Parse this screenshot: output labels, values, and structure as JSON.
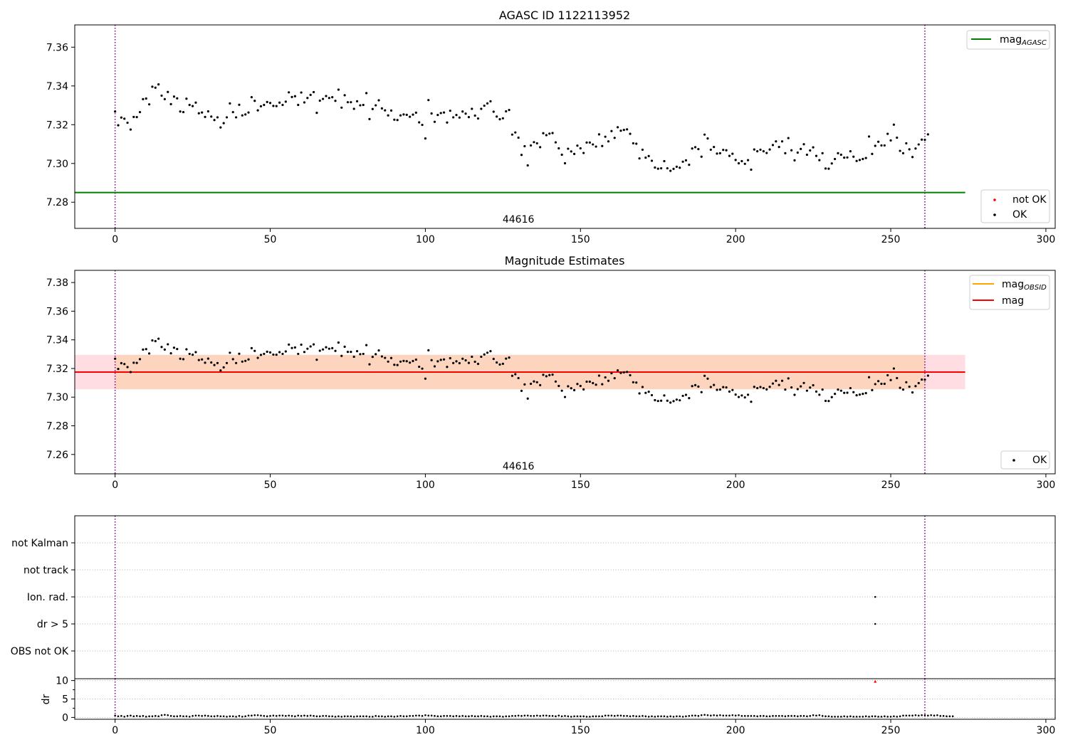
{
  "chart_data": [
    {
      "type": "scatter",
      "title": "AGASC ID 1122113952",
      "xlim": [
        -13,
        303
      ],
      "ylim": [
        7.2665,
        7.3715
      ],
      "xticks": [
        0,
        50,
        100,
        150,
        200,
        250,
        300
      ],
      "yticks": [
        7.28,
        7.3,
        7.32,
        7.34,
        7.36
      ],
      "ytick_labels": [
        "7.28",
        "7.30",
        "7.32",
        "7.34",
        "7.36"
      ],
      "vlines": [
        0,
        261
      ],
      "hline": {
        "value": 7.285,
        "x0": -13,
        "x1": 274,
        "label_main": "mag",
        "label_sub": "AGASC",
        "color": "#008000"
      },
      "obsid_label": {
        "text": "44616",
        "x": 130,
        "y": 7.2695
      },
      "legend_top": [
        {
          "label_main": "mag",
          "label_sub": "AGASC",
          "color": "#008000"
        }
      ],
      "legend_bottom": [
        {
          "label": "not OK",
          "color": "#ff0000"
        },
        {
          "label": "OK",
          "color": "#000000"
        }
      ],
      "series": [
        {
          "name": "OK",
          "color": "#000000",
          "ref": "magnitudes"
        }
      ]
    },
    {
      "type": "scatter",
      "title": "Magnitude Estimates",
      "xlim": [
        -13,
        303
      ],
      "ylim": [
        7.2465,
        7.3885
      ],
      "xticks": [
        0,
        50,
        100,
        150,
        200,
        250,
        300
      ],
      "yticks": [
        7.26,
        7.28,
        7.3,
        7.32,
        7.34,
        7.36,
        7.38
      ],
      "ytick_labels": [
        "7.26",
        "7.28",
        "7.30",
        "7.32",
        "7.34",
        "7.36",
        "7.38"
      ],
      "vlines": [
        0,
        261
      ],
      "mag_line": {
        "value": 7.3175,
        "x0": -13,
        "x1": 274,
        "color": "#ff0000"
      },
      "mag_band": {
        "y0": 7.3055,
        "y1": 7.3295,
        "x0": -13,
        "x1": 274,
        "color": "#ffdde3"
      },
      "obsid_band": {
        "y0": 7.3055,
        "y1": 7.3295,
        "x0": 0,
        "x1": 261,
        "color": "#fdd4be"
      },
      "obsid_label": {
        "text": "44616",
        "x": 130,
        "y": 7.2495
      },
      "legend_top": [
        {
          "label_main": "mag",
          "label_sub": "OBSID",
          "color": "#ffa500"
        },
        {
          "label_main": "mag",
          "label_sub": "",
          "color": "#ff0000"
        }
      ],
      "legend_bottom": [
        {
          "label": "OK",
          "color": "#000000"
        }
      ],
      "series": [
        {
          "name": "OK",
          "color": "#000000",
          "ref": "magnitudes"
        }
      ]
    },
    {
      "type": "scatter",
      "title": "",
      "xlim": [
        -13,
        303
      ],
      "categories": [
        "not Kalman",
        "not track",
        "Ion. rad.",
        "dr > 5",
        "OBS not OK"
      ],
      "flag_points": [
        {
          "x": 245,
          "category": "Ion. rad."
        },
        {
          "x": 245,
          "category": "dr > 5"
        }
      ],
      "vlines": [
        0,
        261
      ]
    },
    {
      "type": "scatter",
      "title": "",
      "ylabel": "dr",
      "xlim": [
        -13,
        303
      ],
      "ylim": [
        -0.5,
        10.5
      ],
      "xticks": [
        0,
        50,
        100,
        150,
        200,
        250,
        300
      ],
      "yticks": [
        0,
        5,
        10
      ],
      "ytick_labels": [
        "0",
        "5",
        "10"
      ],
      "minor_yticks": [
        2.5,
        7.5
      ],
      "vlines": [
        0,
        261
      ],
      "outlier": {
        "x": 245,
        "y": 9.8,
        "color": "#ff0000"
      },
      "dr_values": [
        0.5,
        0.3,
        0.4,
        0.2,
        0.4,
        0.5,
        0.3,
        0.4,
        0.3,
        0.4,
        0.2,
        0.3,
        0.3,
        0.4,
        0.3,
        0.6,
        0.7,
        0.6,
        0.4,
        0.3,
        0.3,
        0.4,
        0.3,
        0.3,
        0.2,
        0.4,
        0.5,
        0.5,
        0.4,
        0.5,
        0.4,
        0.3,
        0.3,
        0.4,
        0.3,
        0.3,
        0.2,
        0.3,
        0.3,
        0.2,
        0.4,
        0.2,
        0.3,
        0.5,
        0.5,
        0.6,
        0.6,
        0.5,
        0.4,
        0.3,
        0.4,
        0.5,
        0.4,
        0.5,
        0.5,
        0.4,
        0.5,
        0.4,
        0.3,
        0.5,
        0.4,
        0.5,
        0.4,
        0.5,
        0.4,
        0.3,
        0.3,
        0.4,
        0.4,
        0.3,
        0.3,
        0.2,
        0.3,
        0.2,
        0.3,
        0.3,
        0.3,
        0.2,
        0.3,
        0.3,
        0.3,
        0.3,
        0.2,
        0.2,
        0.4,
        0.3,
        0.3,
        0.2,
        0.3,
        0.3,
        0.2,
        0.3,
        0.4,
        0.3,
        0.3,
        0.4,
        0.4,
        0.5,
        0.5,
        0.4,
        0.6,
        0.5,
        0.5,
        0.4,
        0.3,
        0.3,
        0.4,
        0.4,
        0.4,
        0.3,
        0.4,
        0.3,
        0.4,
        0.3,
        0.3,
        0.4,
        0.3,
        0.3,
        0.4,
        0.3,
        0.3,
        0.2,
        0.3,
        0.3,
        0.3,
        0.2,
        0.3,
        0.3,
        0.4,
        0.4,
        0.5,
        0.4,
        0.5,
        0.5,
        0.4,
        0.4,
        0.5,
        0.4,
        0.5,
        0.5,
        0.4,
        0.4,
        0.3,
        0.5,
        0.3,
        0.4,
        0.3,
        0.2,
        0.3,
        0.3,
        0.3,
        0.3,
        0.2,
        0.2,
        0.3,
        0.3,
        0.3,
        0.3,
        0.5,
        0.5,
        0.5,
        0.4,
        0.5,
        0.5,
        0.4,
        0.4,
        0.3,
        0.4,
        0.3,
        0.3,
        0.4,
        0.3,
        0.2,
        0.3,
        0.2,
        0.3,
        0.3,
        0.3,
        0.2,
        0.3,
        0.2,
        0.3,
        0.3,
        0.2,
        0.3,
        0.4,
        0.5,
        0.5,
        0.4,
        0.6,
        0.7,
        0.6,
        0.5,
        0.6,
        0.5,
        0.6,
        0.5,
        0.5,
        0.5,
        0.6,
        0.5,
        0.6,
        0.4,
        0.4,
        0.4,
        0.4,
        0.4,
        0.3,
        0.4,
        0.4,
        0.3,
        0.3,
        0.4,
        0.4,
        0.4,
        0.4,
        0.3,
        0.4,
        0.4,
        0.4,
        0.3,
        0.4,
        0.4,
        0.3,
        0.4,
        0.6,
        0.5,
        0.6,
        0.4,
        0.3,
        0.3,
        0.2,
        0.2,
        0.2,
        0.2,
        0.3,
        0.2,
        0.3,
        0.2,
        0.2,
        0.2,
        0.2,
        0.3,
        0.2,
        0.3,
        0.3,
        0.2,
        0.2,
        0.3,
        0.2,
        0.2,
        0.3,
        0.2,
        0.3,
        0.5,
        0.5,
        0.5,
        0.5,
        0.6,
        0.5,
        0.6,
        0.6,
        0.5,
        0.6,
        0.5,
        0.6,
        0.4,
        0.4,
        0.3,
        0.3,
        0.3
      ]
    }
  ],
  "magnitudes": [
    7.3268,
    7.3197,
    7.3237,
    7.3231,
    7.321,
    7.3175,
    7.324,
    7.3239,
    7.3265,
    7.3332,
    7.3335,
    7.3305,
    7.3396,
    7.3391,
    7.3408,
    7.335,
    7.3332,
    7.3369,
    7.3306,
    7.3345,
    7.3336,
    7.3268,
    7.3265,
    7.3334,
    7.3302,
    7.3296,
    7.3314,
    7.3259,
    7.3263,
    7.324,
    7.3269,
    7.3242,
    7.3224,
    7.3238,
    7.3186,
    7.3208,
    7.3238,
    7.331,
    7.3265,
    7.3238,
    7.3303,
    7.3248,
    7.3253,
    7.3263,
    7.3342,
    7.3323,
    7.3274,
    7.3295,
    7.3302,
    7.3317,
    7.3312,
    7.3297,
    7.3296,
    7.3314,
    7.3302,
    7.3319,
    7.3367,
    7.3343,
    7.3347,
    7.3302,
    7.3366,
    7.3315,
    7.3338,
    7.3354,
    7.3368,
    7.3261,
    7.3324,
    7.3333,
    7.3348,
    7.3338,
    7.3342,
    7.3323,
    7.3381,
    7.3288,
    7.3352,
    7.3316,
    7.3316,
    7.3282,
    7.3321,
    7.33,
    7.3302,
    7.3363,
    7.3229,
    7.3281,
    7.33,
    7.3326,
    7.3284,
    7.3274,
    7.3248,
    7.3273,
    7.3226,
    7.3224,
    7.3248,
    7.3253,
    7.3251,
    7.3241,
    7.3252,
    7.3262,
    7.3212,
    7.3199,
    7.3129,
    7.3327,
    7.3258,
    7.3215,
    7.325,
    7.326,
    7.3263,
    7.3211,
    7.3272,
    7.3238,
    7.325,
    7.3237,
    7.3268,
    7.3257,
    7.3239,
    7.3282,
    7.3247,
    7.3232,
    7.3282,
    7.3298,
    7.331,
    7.3321,
    7.3267,
    7.3242,
    7.3228,
    7.3233,
    7.3269,
    7.3276,
    7.3149,
    7.316,
    7.3133,
    7.3044,
    7.3089,
    7.299,
    7.3093,
    7.311,
    7.3104,
    7.3084,
    7.3156,
    7.3146,
    7.3154,
    7.3157,
    7.3109,
    7.3078,
    7.3045,
    7.3001,
    7.3076,
    7.3062,
    7.3049,
    7.3092,
    7.3078,
    7.3054,
    7.3108,
    7.3108,
    7.3098,
    7.3087,
    7.315,
    7.309,
    7.3138,
    7.3114,
    7.3167,
    7.3132,
    7.3187,
    7.3169,
    7.3173,
    7.3176,
    7.3153,
    7.3104,
    7.3102,
    7.3026,
    7.3071,
    7.303,
    7.3038,
    7.3014,
    7.2979,
    7.2973,
    7.2975,
    7.3012,
    7.2975,
    7.2962,
    7.2972,
    7.2983,
    7.2978,
    7.3009,
    7.3016,
    7.2993,
    7.3077,
    7.3084,
    7.3074,
    7.3035,
    7.3149,
    7.3129,
    7.3071,
    7.3085,
    7.3051,
    7.3053,
    7.307,
    7.3068,
    7.3039,
    7.305,
    7.3018,
    7.3001,
    7.3012,
    7.2998,
    7.3017,
    7.2968,
    7.3072,
    7.3063,
    7.3071,
    7.3063,
    7.3054,
    7.3072,
    7.3095,
    7.3114,
    7.3085,
    7.3114,
    7.3053,
    7.3131,
    7.3068,
    7.3016,
    7.3056,
    7.3075,
    7.3099,
    7.3045,
    7.3067,
    7.3083,
    7.3039,
    7.3017,
    7.3053,
    7.2974,
    7.2973,
    7.3,
    7.3023,
    7.3053,
    7.3045,
    7.303,
    7.3031,
    7.3063,
    7.3035,
    7.3013,
    7.3018,
    7.3023,
    7.3028,
    7.3139,
    7.3049,
    7.3091,
    7.3112,
    7.3093,
    7.3093,
    7.3153,
    7.3119,
    7.32,
    7.3133,
    7.3065,
    7.3053,
    7.3104,
    7.3073,
    7.3033,
    7.3077,
    7.3098,
    7.3123,
    7.3122,
    7.315
  ]
}
